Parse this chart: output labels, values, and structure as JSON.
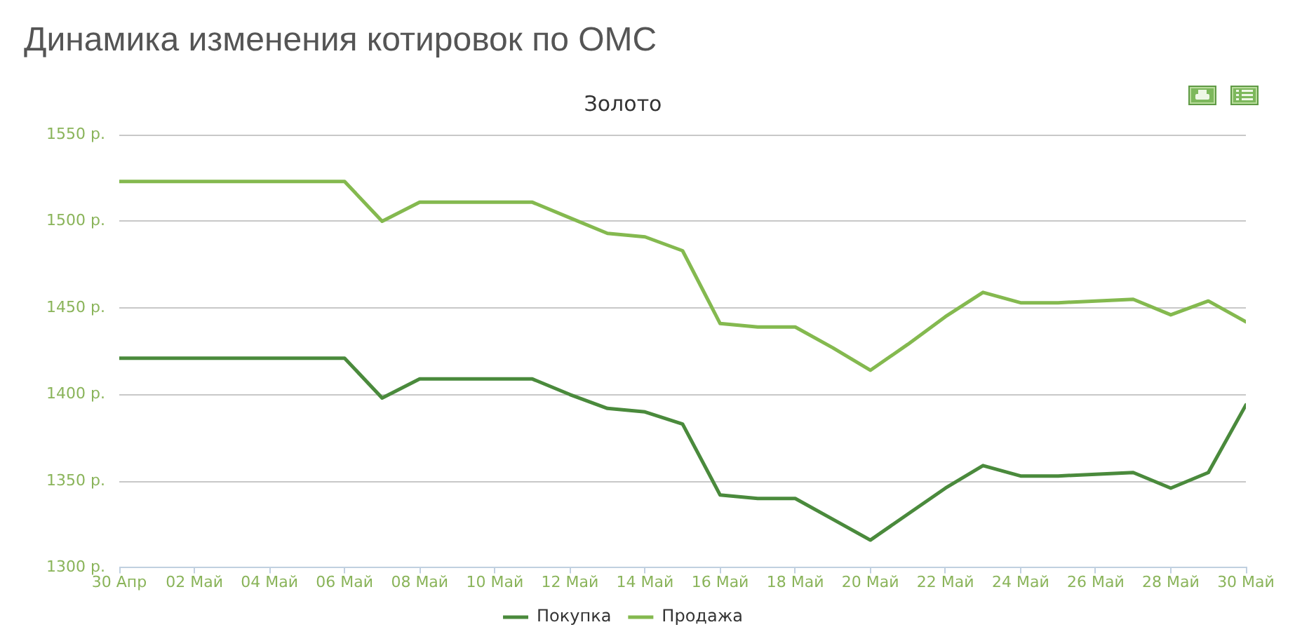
{
  "chart_data": {
    "type": "line",
    "title": "Динамика изменения котировок по ОМС",
    "subtitle": "Золото",
    "x": [
      "--04-30",
      "--05-01",
      "--05-02",
      "--05-03",
      "--05-04",
      "--05-05",
      "--05-06",
      "--05-07",
      "--05-08",
      "--05-09",
      "--05-10",
      "--05-11",
      "--05-12",
      "--05-13",
      "--05-14",
      "--05-15",
      "--05-16",
      "--05-17",
      "--05-18",
      "--05-19",
      "--05-20",
      "--05-21",
      "--05-22",
      "--05-23",
      "--05-24",
      "--05-25",
      "--05-26",
      "--05-27",
      "--05-28",
      "--05-29",
      "--05-30"
    ],
    "series": [
      {
        "name": "Покупка",
        "color": "#4a8a3c",
        "values": [
          1421,
          1421,
          1421,
          1421,
          1421,
          1421,
          1421,
          1398,
          1409,
          1409,
          1409,
          1409,
          1400,
          1392,
          1390,
          1383,
          1342,
          1340,
          1340,
          1328,
          1316,
          1331,
          1346,
          1359,
          1353,
          1353,
          1354,
          1355,
          1346,
          1355,
          1394
        ]
      },
      {
        "name": "Продажа",
        "color": "#84b94f",
        "values": [
          1523,
          1523,
          1523,
          1523,
          1523,
          1523,
          1523,
          1500,
          1511,
          1511,
          1511,
          1511,
          1502,
          1493,
          1491,
          1483,
          1441,
          1439,
          1439,
          1427,
          1414,
          1429,
          1445,
          1459,
          1453,
          1453,
          1454,
          1455,
          1446,
          1454,
          1442
        ]
      }
    ],
    "xlim": [
      "--04-30",
      "--05-30"
    ],
    "xticks": [
      {
        "value": "--04-30",
        "label": "30 Апр"
      },
      {
        "value": "--05-02",
        "label": "02 Май"
      },
      {
        "value": "--05-04",
        "label": "04 Май"
      },
      {
        "value": "--05-06",
        "label": "06 Май"
      },
      {
        "value": "--05-08",
        "label": "08 Май"
      },
      {
        "value": "--05-10",
        "label": "10 Май"
      },
      {
        "value": "--05-12",
        "label": "12 Май"
      },
      {
        "value": "--05-14",
        "label": "14 Май"
      },
      {
        "value": "--05-16",
        "label": "16 Май"
      },
      {
        "value": "--05-18",
        "label": "18 Май"
      },
      {
        "value": "--05-20",
        "label": "20 Май"
      },
      {
        "value": "--05-22",
        "label": "22 Май"
      },
      {
        "value": "--05-24",
        "label": "24 Май"
      },
      {
        "value": "--05-26",
        "label": "26 Май"
      },
      {
        "value": "--05-28",
        "label": "28 Май"
      },
      {
        "value": "--05-30",
        "label": "30 Май"
      }
    ],
    "ylim": [
      1300,
      1550
    ],
    "yticks": [
      {
        "value": 1300,
        "label": "1300 р."
      },
      {
        "value": 1350,
        "label": "1350 р."
      },
      {
        "value": 1400,
        "label": "1400 р."
      },
      {
        "value": 1450,
        "label": "1450 р."
      },
      {
        "value": 1500,
        "label": "1500 р."
      },
      {
        "value": 1550,
        "label": "1550 р."
      }
    ],
    "grid": "y",
    "legend": "bottom"
  }
}
